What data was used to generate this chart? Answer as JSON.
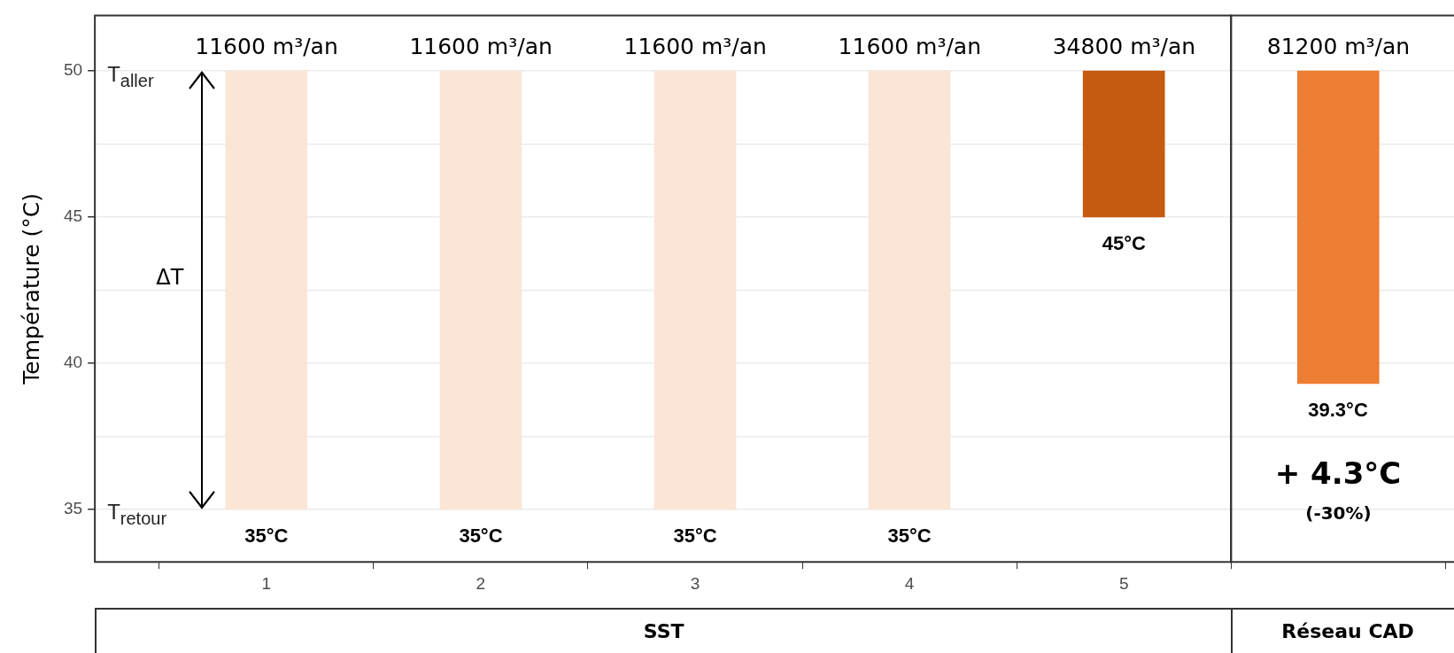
{
  "chart_data": {
    "type": "bar",
    "ylabel": "Température (°C)",
    "categories": [
      "1",
      "2",
      "3",
      "4",
      "5",
      null
    ],
    "base": [
      35,
      35,
      35,
      35,
      45,
      39.3
    ],
    "values": [
      15,
      15,
      15,
      15,
      5,
      10.7
    ],
    "colors": [
      "#fbe5d6",
      "#fbe5d6",
      "#fbe5d6",
      "#fbe5d6",
      "#c55a11",
      "#ed7d31"
    ],
    "ylim": [
      33.2,
      51.9
    ],
    "yticks": [
      35,
      {
        "value": 37.5,
        "label": null
      },
      40,
      {
        "value": 42.5,
        "label": null
      },
      45,
      {
        "value": 47.5,
        "label": null
      },
      50
    ],
    "grid": "y",
    "annotations": [
      {
        "text": "11600 m³/an",
        "x": "1",
        "y": 50
      },
      {
        "text": "11600 m³/an",
        "x": "2",
        "y": 50
      },
      {
        "text": "11600 m³/an",
        "x": "3",
        "y": 50
      },
      {
        "text": "11600 m³/an",
        "x": "4",
        "y": 50
      },
      {
        "text": "34800 m³/an",
        "x": "5",
        "y": 50
      },
      {
        "text": "81200 m³/an",
        "y": 50
      },
      {
        "text": "35°C",
        "x": "1",
        "y": 35
      },
      {
        "text": "35°C",
        "x": "2",
        "y": 35
      },
      {
        "text": "35°C",
        "x": "3",
        "y": 35
      },
      {
        "text": "35°C",
        "x": "4",
        "y": 35
      },
      {
        "text": "45°C",
        "x": "5",
        "y": 45
      },
      {
        "text": "39.3°C",
        "y": 39.3
      },
      "T$_{aller}$",
      "T$_{retour}$",
      "ΔT",
      "+ 4.3°C",
      "(-30%)",
      "SST",
      "Réseau CAD"
    ]
  }
}
